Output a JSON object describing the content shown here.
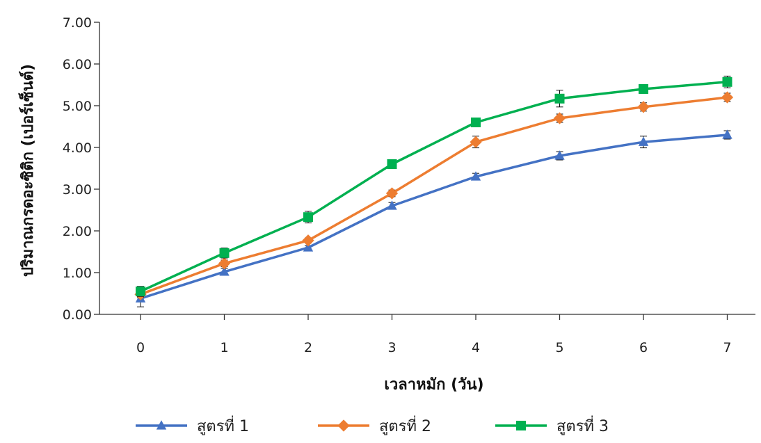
{
  "chart_data": {
    "type": "line",
    "xlabel": "เวลาหมัก (วัน)",
    "ylabel": "ปริมาณกรดอะซิติก (เปอร์เซ็นต์)",
    "x": [
      0,
      1,
      2,
      3,
      4,
      5,
      6,
      7
    ],
    "x_tick_labels": [
      "0",
      "1",
      "2",
      "3",
      "4",
      "5",
      "6",
      "7"
    ],
    "y_tick_labels": [
      "0.00",
      "1.00",
      "2.00",
      "3.00",
      "4.00",
      "5.00",
      "6.00",
      "7.00"
    ],
    "ylim": [
      0,
      7
    ],
    "grid": false,
    "legend_position": "bottom",
    "series": [
      {
        "name": "สูตรที่ 1",
        "marker": "triangle",
        "color": "#4472C4",
        "values": [
          0.38,
          1.02,
          1.6,
          2.6,
          3.3,
          3.8,
          4.13,
          4.3
        ],
        "error": [
          0.2,
          0.08,
          0.05,
          0.08,
          0.08,
          0.1,
          0.14,
          0.1
        ]
      },
      {
        "name": "สูตรที่ 2",
        "marker": "diamond",
        "color": "#ED7D31",
        "values": [
          0.48,
          1.22,
          1.77,
          2.9,
          4.13,
          4.7,
          4.97,
          5.2
        ],
        "error": [
          0.08,
          0.08,
          0.06,
          0.08,
          0.14,
          0.1,
          0.1,
          0.1
        ]
      },
      {
        "name": "สูตรที่ 3",
        "marker": "square",
        "color": "#00B050",
        "values": [
          0.55,
          1.47,
          2.33,
          3.6,
          4.6,
          5.17,
          5.4,
          5.57
        ],
        "error": [
          0.12,
          0.12,
          0.14,
          0.06,
          0.06,
          0.2,
          0.06,
          0.14
        ]
      }
    ]
  }
}
